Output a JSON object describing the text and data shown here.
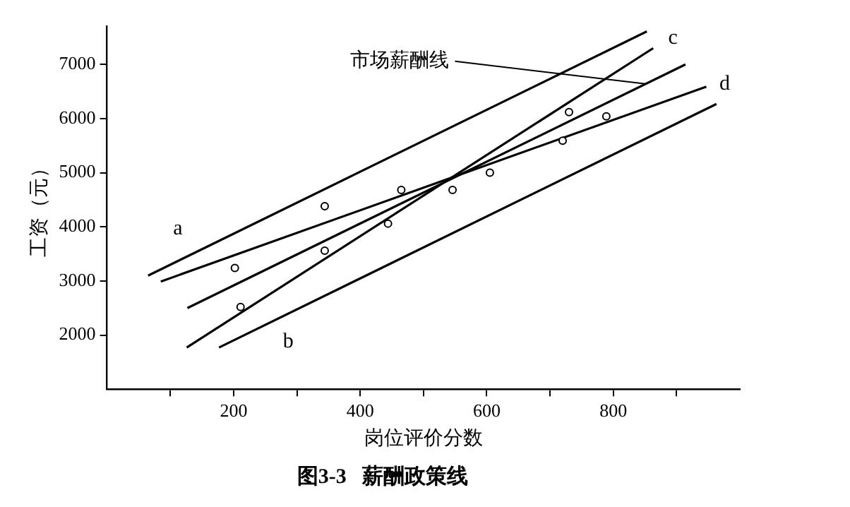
{
  "chart_data": {
    "type": "line",
    "title": "图3-3   薪酬政策线",
    "xlabel": "岗位评价分数",
    "ylabel": "工资（元）",
    "xlim": [
      0,
      1000
    ],
    "ylim": [
      1000,
      7700
    ],
    "xticks": [
      {
        "value": 100,
        "label": null
      },
      200,
      {
        "value": 300,
        "label": null
      },
      400,
      {
        "value": 500,
        "label": null
      },
      600,
      {
        "value": 700,
        "label": null
      },
      800,
      {
        "value": 900,
        "label": null
      }
    ],
    "yticks": [
      2000,
      3000,
      4000,
      5000,
      6000,
      7000
    ],
    "grid": false,
    "legend": false,
    "series": [
      {
        "type": "scatter",
        "marker": "circle",
        "color": "#000000",
        "x": [
          202,
          211,
          344,
          344,
          444,
          465,
          546,
          605,
          720,
          730,
          789
        ],
        "values": [
          3240,
          2520,
          4380,
          3560,
          4060,
          4680,
          4680,
          5000,
          5590,
          6120,
          6040
        ]
      },
      {
        "name": "a",
        "color": "#000000",
        "marker": "none",
        "x": [
          65,
          853
        ],
        "values": [
          3100,
          7610
        ]
      },
      {
        "name": "d",
        "color": "#000000",
        "marker": "none",
        "x": [
          85,
          947
        ],
        "values": [
          2990,
          6590
        ]
      },
      {
        "name": "市场薪酬线",
        "color": "#000000",
        "marker": "none",
        "x": [
          127,
          914
        ],
        "values": [
          2500,
          7000
        ]
      },
      {
        "name": "c",
        "color": "#000000",
        "marker": "none",
        "x": [
          126,
          863
        ],
        "values": [
          1770,
          7300
        ]
      },
      {
        "name": "b",
        "color": "#000000",
        "marker": "none",
        "x": [
          177,
          963
        ],
        "values": [
          1770,
          6270
        ]
      }
    ]
  }
}
